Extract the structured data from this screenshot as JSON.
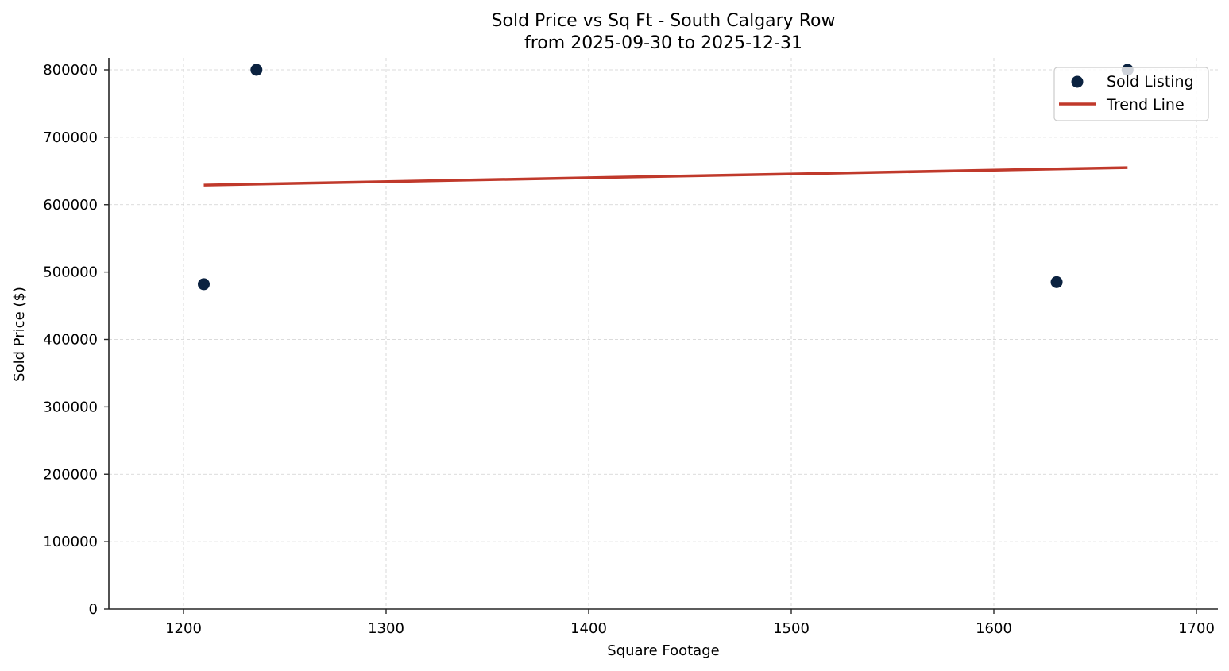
{
  "chart_data": {
    "type": "scatter",
    "title": "Sold Price vs Sq Ft - South Calgary Row",
    "subtitle": "from 2025-09-30 to 2025-12-31",
    "xlabel": "Square Footage",
    "ylabel": "Sold Price ($)",
    "xlim": [
      1163,
      1711
    ],
    "ylim": [
      0,
      818000
    ],
    "xticks": [
      1200,
      1300,
      1400,
      1500,
      1600,
      1700
    ],
    "yticks": [
      0,
      100000,
      200000,
      300000,
      400000,
      500000,
      600000,
      700000,
      800000
    ],
    "grid": true,
    "legend_position": "upper right",
    "series": [
      {
        "name": "Sold Listing",
        "type": "scatter",
        "color": "#0b2240",
        "points": [
          {
            "x": 1210,
            "y": 482000
          },
          {
            "x": 1236,
            "y": 800000
          },
          {
            "x": 1631,
            "y": 485000
          },
          {
            "x": 1666,
            "y": 800000
          }
        ]
      },
      {
        "name": "Trend Line",
        "type": "line",
        "color": "#c0392b",
        "points": [
          {
            "x": 1210,
            "y": 629000
          },
          {
            "x": 1666,
            "y": 655000
          }
        ]
      }
    ]
  },
  "legend": {
    "items": [
      {
        "label": "Sold Listing"
      },
      {
        "label": "Trend Line"
      }
    ]
  }
}
